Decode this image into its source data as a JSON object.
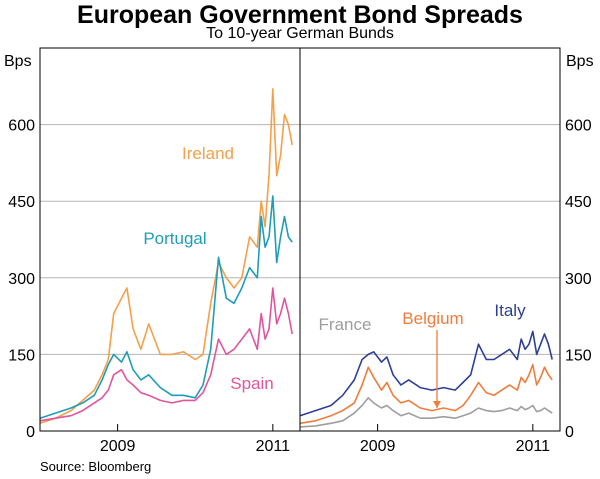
{
  "header": {
    "title": "European Government Bond Spreads",
    "subtitle": "To 10-year German Bunds"
  },
  "footer": {
    "source": "Source: Bloomberg"
  },
  "chart_data": [
    {
      "type": "line",
      "panel": "left",
      "ylabel": "Bps",
      "ylim": [
        0,
        750
      ],
      "yticks": [
        0,
        150,
        300,
        450,
        600
      ],
      "xlim": [
        2008.0,
        2011.35
      ],
      "xticks": [
        2009,
        2011
      ],
      "xtick_labels": [
        "2009",
        "2011"
      ],
      "grid": true,
      "series": [
        {
          "name": "Ireland",
          "color": "#F5A04A",
          "x": [
            2008.0,
            2008.2,
            2008.4,
            2008.55,
            2008.7,
            2008.8,
            2008.88,
            2008.95,
            2009.05,
            2009.12,
            2009.2,
            2009.3,
            2009.4,
            2009.55,
            2009.7,
            2009.85,
            2010.0,
            2010.1,
            2010.2,
            2010.3,
            2010.4,
            2010.5,
            2010.6,
            2010.7,
            2010.8,
            2010.85,
            2010.9,
            2010.95,
            2011.0,
            2011.05,
            2011.1,
            2011.15,
            2011.2,
            2011.25
          ],
          "values": [
            15,
            25,
            40,
            60,
            80,
            110,
            140,
            230,
            260,
            280,
            200,
            160,
            210,
            150,
            150,
            155,
            140,
            150,
            250,
            330,
            300,
            280,
            300,
            380,
            360,
            450,
            400,
            500,
            670,
            500,
            540,
            620,
            600,
            560
          ]
        },
        {
          "name": "Portugal",
          "color": "#1F9DB8",
          "x": [
            2008.0,
            2008.2,
            2008.4,
            2008.55,
            2008.7,
            2008.8,
            2008.88,
            2008.95,
            2009.05,
            2009.12,
            2009.2,
            2009.3,
            2009.4,
            2009.55,
            2009.7,
            2009.85,
            2010.0,
            2010.1,
            2010.2,
            2010.3,
            2010.4,
            2010.5,
            2010.6,
            2010.7,
            2010.8,
            2010.85,
            2010.9,
            2010.95,
            2011.0,
            2011.05,
            2011.1,
            2011.15,
            2011.2,
            2011.25
          ],
          "values": [
            25,
            35,
            45,
            55,
            70,
            100,
            130,
            150,
            135,
            155,
            120,
            100,
            110,
            85,
            70,
            70,
            65,
            90,
            160,
            340,
            260,
            250,
            280,
            320,
            300,
            420,
            360,
            380,
            460,
            330,
            380,
            420,
            380,
            370
          ]
        },
        {
          "name": "Spain",
          "color": "#E0559E",
          "x": [
            2008.0,
            2008.2,
            2008.4,
            2008.55,
            2008.7,
            2008.8,
            2008.88,
            2008.95,
            2009.05,
            2009.12,
            2009.2,
            2009.3,
            2009.4,
            2009.55,
            2009.7,
            2009.85,
            2010.0,
            2010.1,
            2010.2,
            2010.3,
            2010.4,
            2010.5,
            2010.6,
            2010.7,
            2010.8,
            2010.85,
            2010.9,
            2010.95,
            2011.0,
            2011.05,
            2011.1,
            2011.15,
            2011.2,
            2011.25
          ],
          "values": [
            20,
            25,
            30,
            40,
            55,
            65,
            80,
            110,
            120,
            100,
            90,
            75,
            70,
            60,
            55,
            60,
            60,
            75,
            110,
            180,
            150,
            160,
            180,
            200,
            160,
            230,
            180,
            200,
            280,
            210,
            230,
            260,
            230,
            190
          ]
        }
      ]
    },
    {
      "type": "line",
      "panel": "right",
      "ylabel": "Bps",
      "ylim": [
        0,
        750
      ],
      "yticks": [
        0,
        150,
        300,
        450,
        600
      ],
      "xlim": [
        2008.0,
        2011.35
      ],
      "xticks": [
        2009,
        2011
      ],
      "xtick_labels": [
        "2009",
        "2011"
      ],
      "grid": true,
      "series": [
        {
          "name": "Italy",
          "color": "#2E3F95",
          "x": [
            2008.0,
            2008.2,
            2008.4,
            2008.55,
            2008.7,
            2008.8,
            2008.88,
            2008.95,
            2009.05,
            2009.12,
            2009.2,
            2009.3,
            2009.4,
            2009.55,
            2009.7,
            2009.85,
            2010.0,
            2010.1,
            2010.2,
            2010.3,
            2010.4,
            2010.5,
            2010.6,
            2010.7,
            2010.8,
            2010.85,
            2010.9,
            2010.95,
            2011.0,
            2011.05,
            2011.1,
            2011.15,
            2011.2,
            2011.25
          ],
          "values": [
            30,
            40,
            50,
            70,
            100,
            140,
            150,
            155,
            135,
            145,
            110,
            90,
            100,
            85,
            80,
            85,
            80,
            95,
            110,
            170,
            140,
            140,
            150,
            160,
            140,
            180,
            160,
            170,
            195,
            150,
            170,
            190,
            170,
            140
          ]
        },
        {
          "name": "Belgium",
          "color": "#F07C3C",
          "x": [
            2008.0,
            2008.2,
            2008.4,
            2008.55,
            2008.7,
            2008.8,
            2008.88,
            2008.95,
            2009.05,
            2009.12,
            2009.2,
            2009.3,
            2009.4,
            2009.55,
            2009.7,
            2009.85,
            2010.0,
            2010.1,
            2010.2,
            2010.3,
            2010.4,
            2010.5,
            2010.6,
            2010.7,
            2010.8,
            2010.85,
            2010.9,
            2010.95,
            2011.0,
            2011.05,
            2011.1,
            2011.15,
            2011.2,
            2011.25
          ],
          "values": [
            15,
            20,
            30,
            40,
            55,
            90,
            125,
            105,
            80,
            95,
            70,
            55,
            60,
            45,
            40,
            45,
            40,
            50,
            70,
            95,
            75,
            70,
            80,
            90,
            80,
            105,
            95,
            110,
            130,
            90,
            105,
            125,
            110,
            100
          ]
        },
        {
          "name": "France",
          "color": "#9E9E9E",
          "x": [
            2008.0,
            2008.2,
            2008.4,
            2008.55,
            2008.7,
            2008.8,
            2008.88,
            2008.95,
            2009.05,
            2009.12,
            2009.2,
            2009.3,
            2009.4,
            2009.55,
            2009.7,
            2009.85,
            2010.0,
            2010.1,
            2010.2,
            2010.3,
            2010.4,
            2010.5,
            2010.6,
            2010.7,
            2010.8,
            2010.85,
            2010.9,
            2010.95,
            2011.0,
            2011.05,
            2011.1,
            2011.15,
            2011.2,
            2011.25
          ],
          "values": [
            8,
            10,
            15,
            20,
            35,
            50,
            65,
            55,
            45,
            50,
            40,
            30,
            35,
            25,
            25,
            28,
            25,
            30,
            35,
            45,
            40,
            38,
            40,
            45,
            40,
            48,
            42,
            45,
            50,
            38,
            40,
            45,
            40,
            35
          ]
        }
      ]
    }
  ]
}
